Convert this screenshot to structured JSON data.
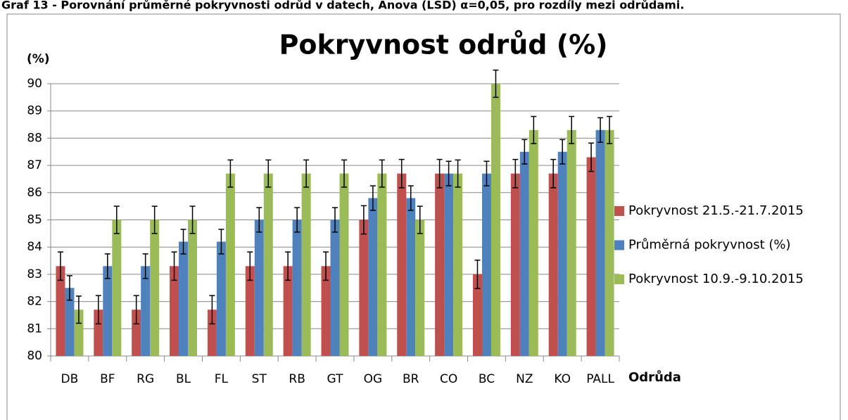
{
  "caption": "Graf 13 - Porovnání průměrné pokryvnosti odrůd v datech, Anova (LSD) α=0,05, pro rozdíly mezi odrůdami.",
  "chart_data": {
    "type": "bar",
    "title": "Pokryvnost odrůd (%)",
    "y_label": "(%)",
    "x_label": "Odrůda",
    "categories": [
      "DB",
      "BF",
      "RG",
      "BL",
      "FL",
      "ST",
      "RB",
      "GT",
      "OG",
      "BR",
      "CO",
      "BC",
      "NZ",
      "KO",
      "PALL"
    ],
    "series": [
      {
        "name": "Pokryvnost 21.5.-21.7.2015",
        "color": "#c0504d",
        "values": [
          83.3,
          81.7,
          81.7,
          83.3,
          81.7,
          83.3,
          83.3,
          83.3,
          85,
          86.7,
          86.7,
          83,
          86.7,
          86.7,
          87.3
        ],
        "errors": [
          0.52,
          0.52,
          0.52,
          0.52,
          0.52,
          0.52,
          0.52,
          0.52,
          0.52,
          0.52,
          0.52,
          0.52,
          0.52,
          0.52,
          0.52
        ]
      },
      {
        "name": "Průměrná pokryvnost (%)",
        "color": "#4f81bd",
        "values": [
          82.5,
          83.3,
          83.3,
          84.2,
          84.2,
          85,
          85,
          85,
          85.8,
          85.8,
          86.7,
          86.7,
          87.5,
          87.5,
          88.3
        ],
        "errors": [
          0.45,
          0.45,
          0.45,
          0.45,
          0.45,
          0.45,
          0.45,
          0.45,
          0.45,
          0.45,
          0.45,
          0.45,
          0.45,
          0.45,
          0.45
        ]
      },
      {
        "name": "Pokryvnost 10.9.-9.10.2015",
        "color": "#9bbb59",
        "values": [
          81.7,
          85,
          85,
          85,
          86.7,
          86.7,
          86.7,
          86.7,
          86.7,
          85,
          86.7,
          90,
          88.3,
          88.3,
          88.3
        ],
        "errors": [
          0.5,
          0.5,
          0.5,
          0.5,
          0.5,
          0.5,
          0.5,
          0.5,
          0.5,
          0.5,
          0.5,
          0.5,
          0.5,
          0.5,
          0.5
        ]
      }
    ],
    "ylim": [
      80,
      90
    ],
    "yticks": [
      80,
      81,
      82,
      83,
      84,
      85,
      86,
      87,
      88,
      89,
      90
    ],
    "grid": true,
    "legend": "right"
  }
}
